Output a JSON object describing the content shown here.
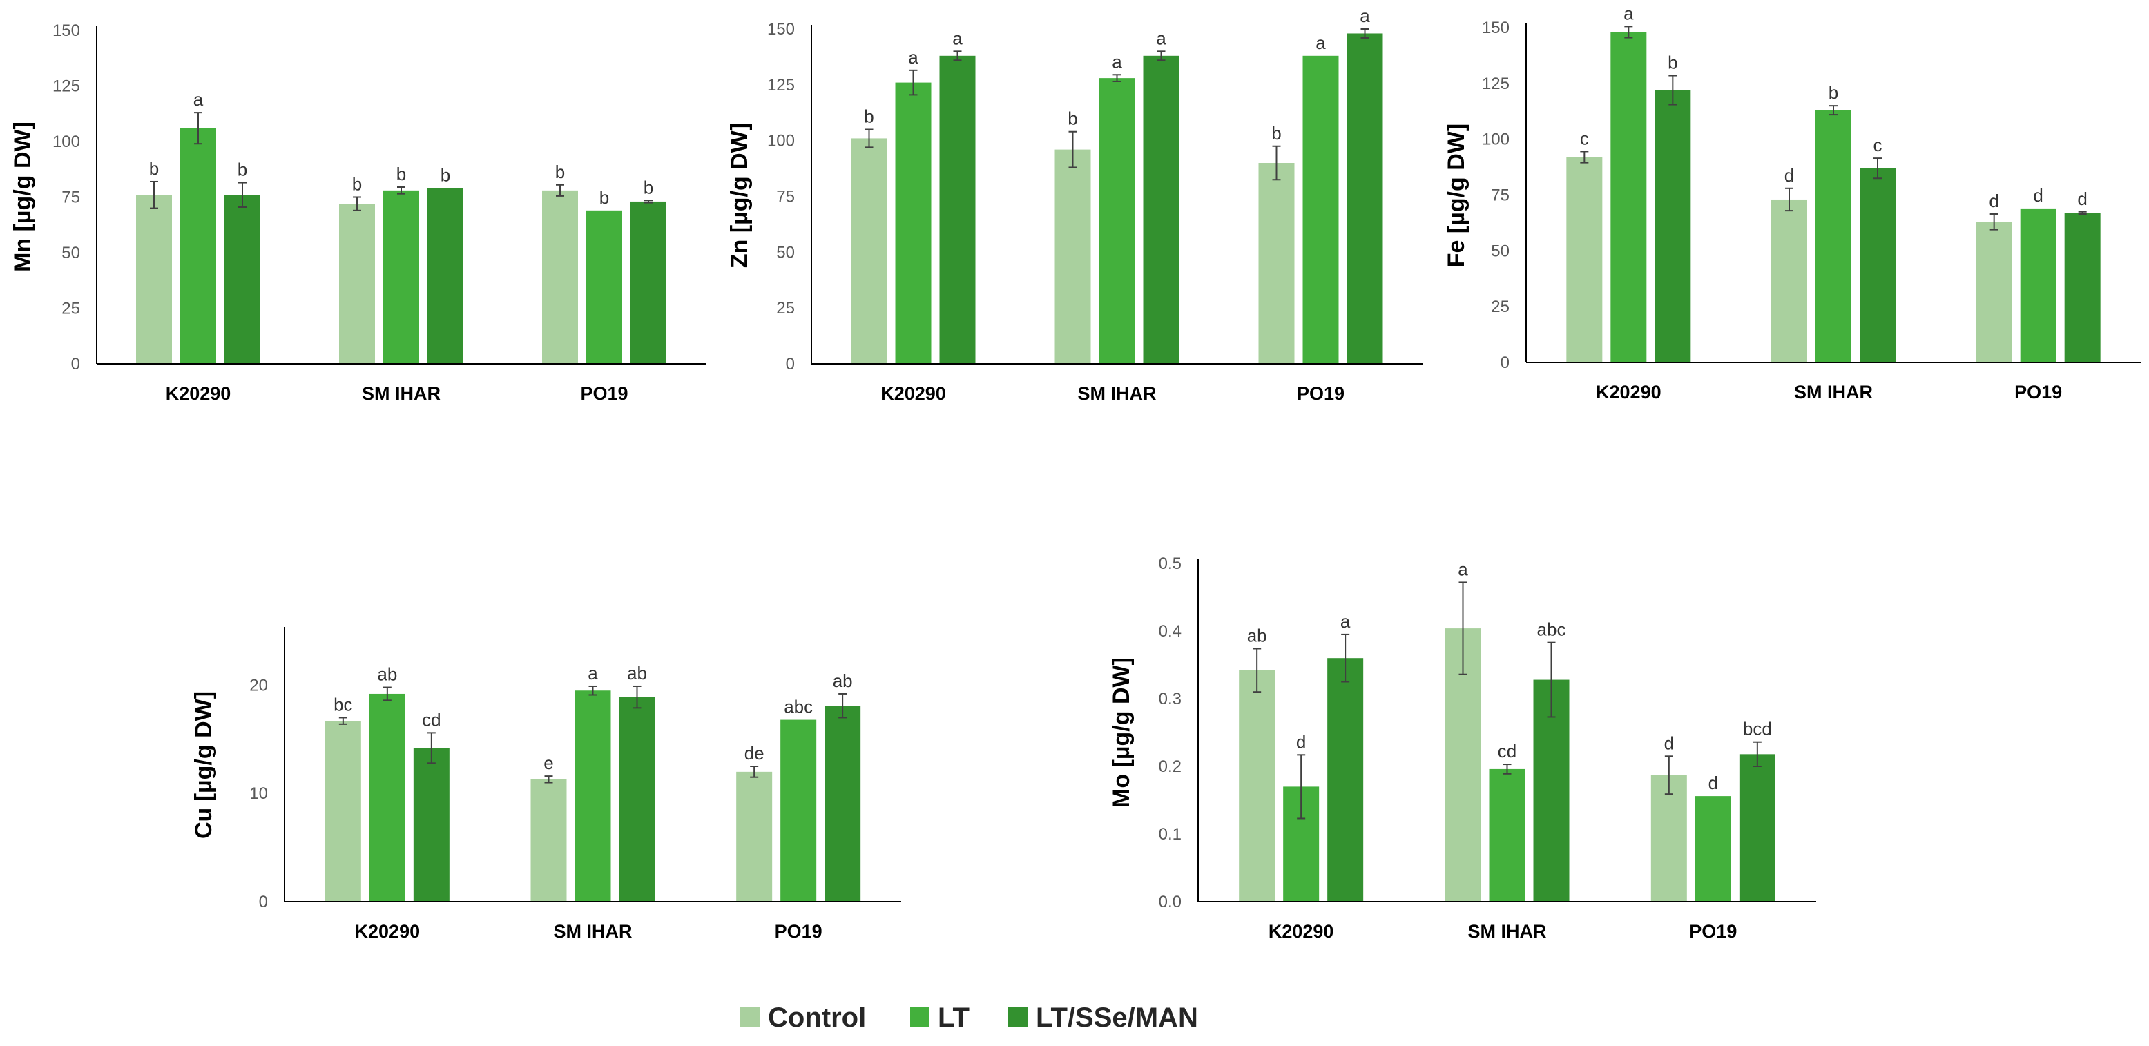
{
  "colors": {
    "Control": "#a9d09e",
    "LT": "#43b03c",
    "LT/SSe/MAN": "#33912f",
    "axis": "#000000",
    "error": "#404040"
  },
  "legend": [
    {
      "name": "Control",
      "label": "Control"
    },
    {
      "name": "LT",
      "label": "LT"
    },
    {
      "name": "LT/SSe/MAN",
      "label": "LT/SSe/MAN"
    }
  ],
  "chart_data": [
    {
      "id": "mn",
      "type": "bar",
      "ylabel": "Mn [µg/g DW]",
      "ylim": [
        0,
        150
      ],
      "yticks": [
        0,
        25,
        50,
        75,
        100,
        125,
        150
      ],
      "yticklabels": [
        "0",
        "25",
        "50",
        "75",
        "100",
        "125",
        "150"
      ],
      "categories": [
        "K20290",
        "SM IHAR",
        "PO19"
      ],
      "series": [
        {
          "name": "Control",
          "values": [
            76,
            72,
            78
          ],
          "errors": [
            6,
            3,
            2.5
          ],
          "letters": [
            "b",
            "b",
            "b"
          ]
        },
        {
          "name": "LT",
          "values": [
            106,
            78,
            69
          ],
          "errors": [
            7,
            1.5,
            0
          ],
          "letters": [
            "a",
            "b",
            "b"
          ]
        },
        {
          "name": "LT/SSe/MAN",
          "values": [
            76,
            79,
            73
          ],
          "errors": [
            5.5,
            0,
            0.5
          ],
          "letters": [
            "b",
            "b",
            "b"
          ]
        }
      ]
    },
    {
      "id": "zn",
      "type": "bar",
      "ylabel": "Zn [µg/g DW]",
      "ylim": [
        0,
        150
      ],
      "yticks": [
        0,
        25,
        50,
        75,
        100,
        125,
        150
      ],
      "yticklabels": [
        "0",
        "25",
        "50",
        "75",
        "100",
        "125",
        "150"
      ],
      "categories": [
        "K20290",
        "SM IHAR",
        "PO19"
      ],
      "series": [
        {
          "name": "Control",
          "values": [
            101,
            96,
            90
          ],
          "errors": [
            4,
            8,
            7.5
          ],
          "letters": [
            "b",
            "b",
            "b"
          ]
        },
        {
          "name": "LT",
          "values": [
            126,
            128,
            138
          ],
          "errors": [
            5.5,
            1.5,
            0
          ],
          "letters": [
            "a",
            "a",
            "a"
          ]
        },
        {
          "name": "LT/SSe/MAN",
          "values": [
            138,
            138,
            148
          ],
          "errors": [
            2,
            2,
            2
          ],
          "letters": [
            "a",
            "a",
            "a"
          ]
        }
      ]
    },
    {
      "id": "fe",
      "type": "bar",
      "ylabel": "Fe [µg/g DW]",
      "ylim": [
        0,
        150
      ],
      "yticks": [
        0,
        25,
        50,
        75,
        100,
        125,
        150
      ],
      "yticklabels": [
        "0",
        "25",
        "50",
        "75",
        "100",
        "125",
        "150"
      ],
      "categories": [
        "K20290",
        "SM IHAR",
        "PO19"
      ],
      "series": [
        {
          "name": "Control",
          "values": [
            92,
            73,
            63
          ],
          "errors": [
            2.5,
            5,
            3.5
          ],
          "letters": [
            "c",
            "d",
            "d"
          ]
        },
        {
          "name": "LT",
          "values": [
            148,
            113,
            69
          ],
          "errors": [
            2.5,
            2,
            0
          ],
          "letters": [
            "a",
            "b",
            "d"
          ]
        },
        {
          "name": "LT/SSe/MAN",
          "values": [
            122,
            87,
            67
          ],
          "errors": [
            6.5,
            4.5,
            0.5
          ],
          "letters": [
            "b",
            "c",
            "d"
          ]
        }
      ]
    },
    {
      "id": "cu",
      "type": "bar",
      "ylabel": "Cu [µg/g DW]",
      "ylim": [
        0,
        25
      ],
      "yticks": [
        0,
        10,
        20
      ],
      "yticklabels": [
        "0",
        "10",
        "20"
      ],
      "categories": [
        "K20290",
        "SM IHAR",
        "PO19"
      ],
      "series": [
        {
          "name": "Control",
          "values": [
            16.7,
            11.3,
            12
          ],
          "errors": [
            0.3,
            0.3,
            0.5
          ],
          "letters": [
            "bc",
            "e",
            "de"
          ]
        },
        {
          "name": "LT",
          "values": [
            19.2,
            19.5,
            16.8
          ],
          "errors": [
            0.6,
            0.4,
            0
          ],
          "letters": [
            "ab",
            "a",
            "abc"
          ]
        },
        {
          "name": "LT/SSe/MAN",
          "values": [
            14.2,
            18.9,
            18.1
          ],
          "errors": [
            1.4,
            1,
            1.1
          ],
          "letters": [
            "cd",
            "ab",
            "ab"
          ]
        }
      ]
    },
    {
      "id": "mo",
      "type": "bar",
      "ylabel": "Mo [µg/g DW]",
      "ylim": [
        0,
        0.5
      ],
      "yticks": [
        0,
        0.1,
        0.2,
        0.3,
        0.4,
        0.5
      ],
      "yticklabels": [
        "0.0",
        "0.1",
        "0.2",
        "0.3",
        "0.4",
        "0.5"
      ],
      "categories": [
        "K20290",
        "SM IHAR",
        "PO19"
      ],
      "series": [
        {
          "name": "Control",
          "values": [
            0.342,
            0.404,
            0.187
          ],
          "errors": [
            0.032,
            0.068,
            0.028
          ],
          "letters": [
            "ab",
            "a",
            "d"
          ]
        },
        {
          "name": "LT",
          "values": [
            0.17,
            0.196,
            0.156
          ],
          "errors": [
            0.047,
            0.007,
            0
          ],
          "letters": [
            "d",
            "cd",
            "d"
          ]
        },
        {
          "name": "LT/SSe/MAN",
          "values": [
            0.36,
            0.328,
            0.218
          ],
          "errors": [
            0.035,
            0.055,
            0.018
          ],
          "letters": [
            "a",
            "abc",
            "bcd"
          ]
        }
      ]
    }
  ]
}
